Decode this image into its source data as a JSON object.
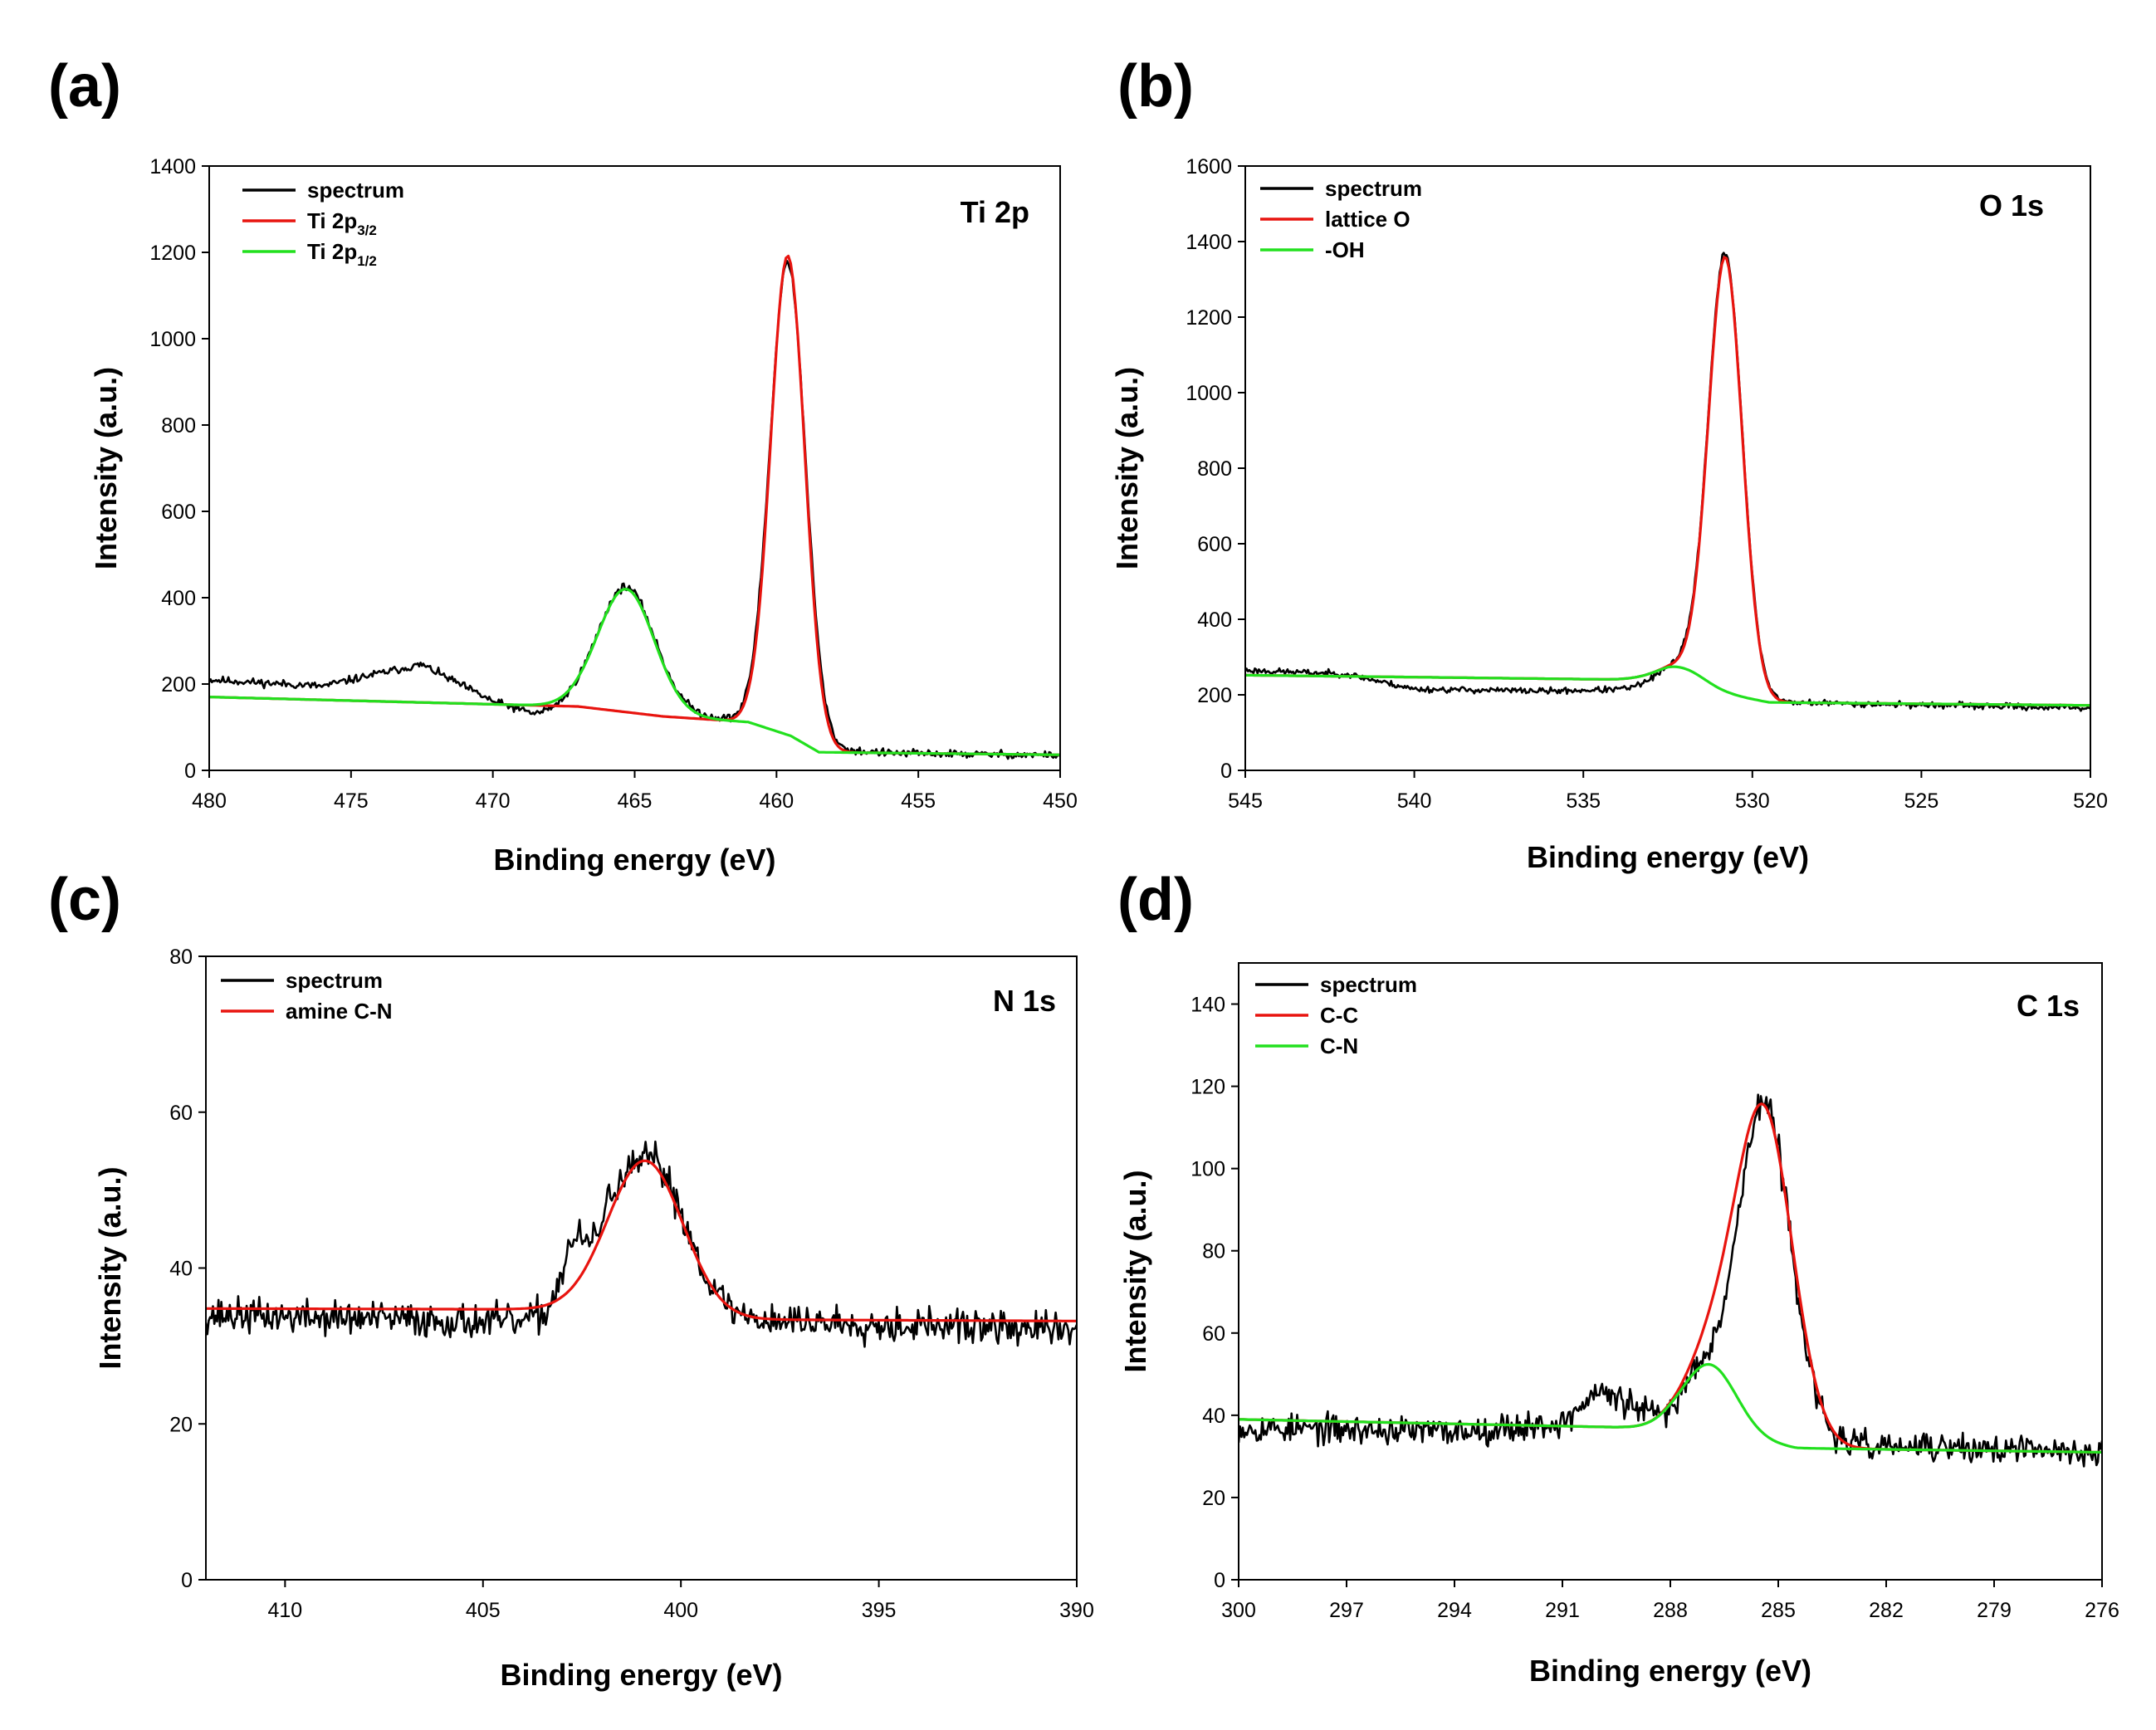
{
  "chart_data": [
    {
      "panel": "(a)",
      "type": "line",
      "title": "Ti 2p",
      "xlabel": "Binding energy (eV)",
      "ylabel": "Intensity (a.u.)",
      "xlim": [
        480,
        450
      ],
      "ylim": [
        0,
        1400
      ],
      "xticks": [
        480,
        475,
        470,
        465,
        460,
        455,
        450
      ],
      "yticks": [
        0,
        200,
        400,
        600,
        800,
        1000,
        1200,
        1400
      ],
      "legend_position": "top-left",
      "series": [
        {
          "name": "spectrum",
          "color": "#000000",
          "noise": 9,
          "seed": 11,
          "background": [
            [
              480,
              210
            ],
            [
              476,
              195
            ],
            [
              474,
              225
            ],
            [
              472.5,
              245
            ],
            [
              470,
              160
            ],
            [
              468.5,
              130
            ],
            [
              467,
              150
            ],
            [
              462,
              120
            ],
            [
              460.5,
              110
            ],
            [
              458.5,
              50
            ],
            [
              456,
              40
            ],
            [
              450,
              35
            ]
          ],
          "peaks": [
            [
              459.6,
              1095,
              0.62
            ],
            [
              465.3,
              285,
              1.0
            ]
          ]
        },
        {
          "name": "Ti 2p",
          "sub": "3/2",
          "color": "#e8140f",
          "noise": 0,
          "background": [
            [
              480,
              170
            ],
            [
              467,
              148
            ],
            [
              464,
              125
            ],
            [
              461,
              112
            ],
            [
              459.5,
              80
            ],
            [
              458.5,
              42
            ],
            [
              450,
              36
            ]
          ],
          "peaks": [
            [
              459.6,
              1110,
              0.6
            ]
          ]
        },
        {
          "name": "Ti 2p",
          "sub": "1/2",
          "color": "#22e01e",
          "noise": 0,
          "background": [
            [
              480,
              170
            ],
            [
              467,
              148
            ],
            [
              464,
              125
            ],
            [
              461,
              112
            ],
            [
              459.5,
              80
            ],
            [
              458.5,
              42
            ],
            [
              450,
              36
            ]
          ],
          "peaks": [
            [
              465.3,
              285,
              1.0
            ]
          ]
        }
      ]
    },
    {
      "panel": "(b)",
      "type": "line",
      "title": "O 1s",
      "xlabel": "Binding energy (eV)",
      "ylabel": "Intensity (a.u.)",
      "xlim": [
        545,
        520
      ],
      "ylim": [
        0,
        1600
      ],
      "xticks": [
        545,
        540,
        535,
        530,
        525,
        520
      ],
      "yticks": [
        0,
        200,
        400,
        600,
        800,
        1000,
        1200,
        1400,
        1600
      ],
      "legend_position": "top-left",
      "series": [
        {
          "name": "spectrum",
          "color": "#000000",
          "noise": 8,
          "seed": 23,
          "background": [
            [
              545,
              265
            ],
            [
              542,
              255
            ],
            [
              540,
              215
            ],
            [
              536,
              210
            ],
            [
              533.5,
              215
            ],
            [
              532,
              240
            ],
            [
              530.5,
              205
            ],
            [
              529,
              180
            ],
            [
              520,
              165
            ]
          ],
          "peaks": [
            [
              530.8,
              1150,
              0.5
            ],
            [
              532.1,
              45,
              0.7
            ]
          ]
        },
        {
          "name": "lattice O",
          "color": "#e8140f",
          "noise": 0,
          "background": [
            [
              545,
              252
            ],
            [
              533.5,
              240
            ],
            [
              532.5,
              235
            ],
            [
              531,
              205
            ],
            [
              529.5,
              180
            ],
            [
              520,
              172
            ]
          ],
          "peaks": [
            [
              530.8,
              1150,
              0.5
            ],
            [
              532.1,
              45,
              0.7
            ]
          ]
        },
        {
          "name": "-OH",
          "color": "#22e01e",
          "noise": 0,
          "background": [
            [
              545,
              252
            ],
            [
              533.5,
              240
            ],
            [
              532.5,
              235
            ],
            [
              531,
              205
            ],
            [
              529.5,
              180
            ],
            [
              520,
              172
            ]
          ],
          "peaks": [
            [
              532.1,
              45,
              0.7
            ]
          ]
        }
      ]
    },
    {
      "panel": "(c)",
      "type": "line",
      "title": "N 1s",
      "xlabel": "Binding energy (eV)",
      "ylabel": "Intensity (a.u.)",
      "xlim": [
        412,
        390
      ],
      "ylim": [
        0,
        80
      ],
      "xticks": [
        410,
        405,
        400,
        395,
        390
      ],
      "yticks": [
        0,
        20,
        40,
        60,
        80
      ],
      "legend_position": "top-left",
      "series": [
        {
          "name": "spectrum",
          "color": "#000000",
          "noise": 2.2,
          "seed": 37,
          "background": [
            [
              412,
              34
            ],
            [
              404,
              33
            ],
            [
              403,
              34.5
            ],
            [
              401,
              34
            ],
            [
              399,
              33.5
            ],
            [
              390,
              32
            ]
          ],
          "peaks": [
            [
              400.8,
              20,
              0.9
            ],
            [
              402.7,
              7,
              0.3
            ],
            [
              401.8,
              4,
              0.3
            ]
          ]
        },
        {
          "name": "amine C-N",
          "color": "#e8140f",
          "noise": 0,
          "background": [
            [
              412,
              34.8
            ],
            [
              404,
              34.7
            ],
            [
              403,
              34.6
            ],
            [
              401,
              34
            ],
            [
              399,
              33.4
            ],
            [
              390,
              33.2
            ]
          ],
          "peaks": [
            [
              400.9,
              19.8,
              0.95
            ]
          ]
        }
      ]
    },
    {
      "panel": "(d)",
      "type": "line",
      "title": "C 1s",
      "xlabel": "Binding energy (eV)",
      "ylabel": "Intensity (a.u.)",
      "xlim": [
        300,
        276
      ],
      "ylim": [
        0,
        150
      ],
      "xticks": [
        300,
        297,
        294,
        291,
        288,
        285,
        282,
        279,
        276
      ],
      "yticks": [
        0,
        20,
        40,
        60,
        80,
        100,
        120,
        140
      ],
      "legend_position": "top-left",
      "series": [
        {
          "name": "spectrum",
          "color": "#000000",
          "noise": 3.5,
          "seed": 53,
          "background": [
            [
              300,
              37
            ],
            [
              294,
              36
            ],
            [
              291,
              38
            ],
            [
              290,
              46
            ],
            [
              289,
              42
            ],
            [
              288,
              38
            ],
            [
              286,
              35
            ],
            [
              284.5,
              33
            ],
            [
              276,
              31
            ]
          ],
          "peaks": [
            [
              285.4,
              82,
              0.75
            ],
            [
              287.2,
              12,
              0.5
            ]
          ]
        },
        {
          "name": "C-C",
          "color": "#e8140f",
          "noise": 0,
          "background": [
            [
              300,
              39
            ],
            [
              289,
              37
            ],
            [
              288,
              37
            ],
            [
              286,
              34
            ],
            [
              284.5,
              32
            ],
            [
              276,
              31
            ]
          ],
          "peaks": [
            [
              285.4,
              80,
              0.8
            ],
            [
              286.9,
              17,
              0.75
            ]
          ]
        },
        {
          "name": "C-N",
          "color": "#22e01e",
          "noise": 0,
          "background": [
            [
              300,
              39
            ],
            [
              289,
              37
            ],
            [
              288,
              37
            ],
            [
              286,
              34
            ],
            [
              284.5,
              32
            ],
            [
              276,
              31
            ]
          ],
          "peaks": [
            [
              286.9,
              17,
              0.75
            ]
          ]
        }
      ]
    }
  ]
}
